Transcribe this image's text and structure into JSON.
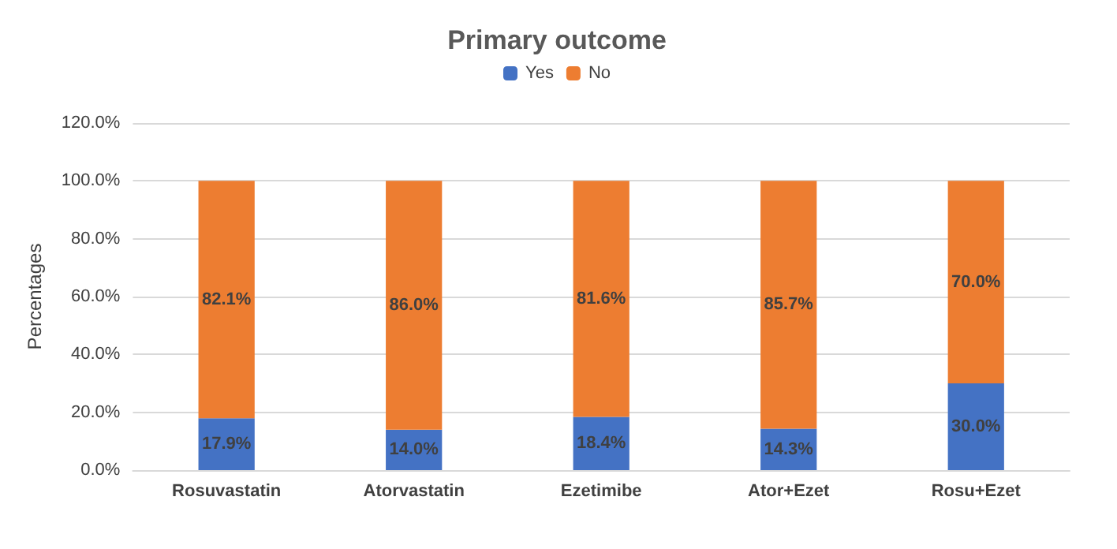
{
  "chart_data": {
    "type": "bar",
    "title": "Primary outcome",
    "ylabel": "Percentages",
    "categories": [
      "Rosuvastatin",
      "Atorvastatin",
      "Ezetimibe",
      "Ator+Ezet",
      "Rosu+Ezet"
    ],
    "stacked": true,
    "series": [
      {
        "name": "Yes",
        "color": "#4472c4",
        "values": [
          17.9,
          14.0,
          18.4,
          14.3,
          30.0
        ],
        "value_labels": [
          "17.9%",
          "14.0%",
          "18.4%",
          "14.3%",
          "30.0%"
        ]
      },
      {
        "name": "No",
        "color": "#ed7d31",
        "values": [
          82.1,
          86.0,
          81.6,
          85.7,
          70.0
        ],
        "value_labels": [
          "82.1%",
          "86.0%",
          "81.6%",
          "85.7%",
          "70.0%"
        ]
      }
    ],
    "ylim": [
      0,
      120
    ],
    "yticks": [
      {
        "value": 0,
        "label": "0.0%"
      },
      {
        "value": 20,
        "label": "20.0%"
      },
      {
        "value": 40,
        "label": "40.0%"
      },
      {
        "value": 60,
        "label": "60.0%"
      },
      {
        "value": 80,
        "label": "80.0%"
      },
      {
        "value": 100,
        "label": "100.0%"
      },
      {
        "value": 120,
        "label": "120.0%"
      }
    ],
    "grid": "y",
    "legend": "top"
  }
}
